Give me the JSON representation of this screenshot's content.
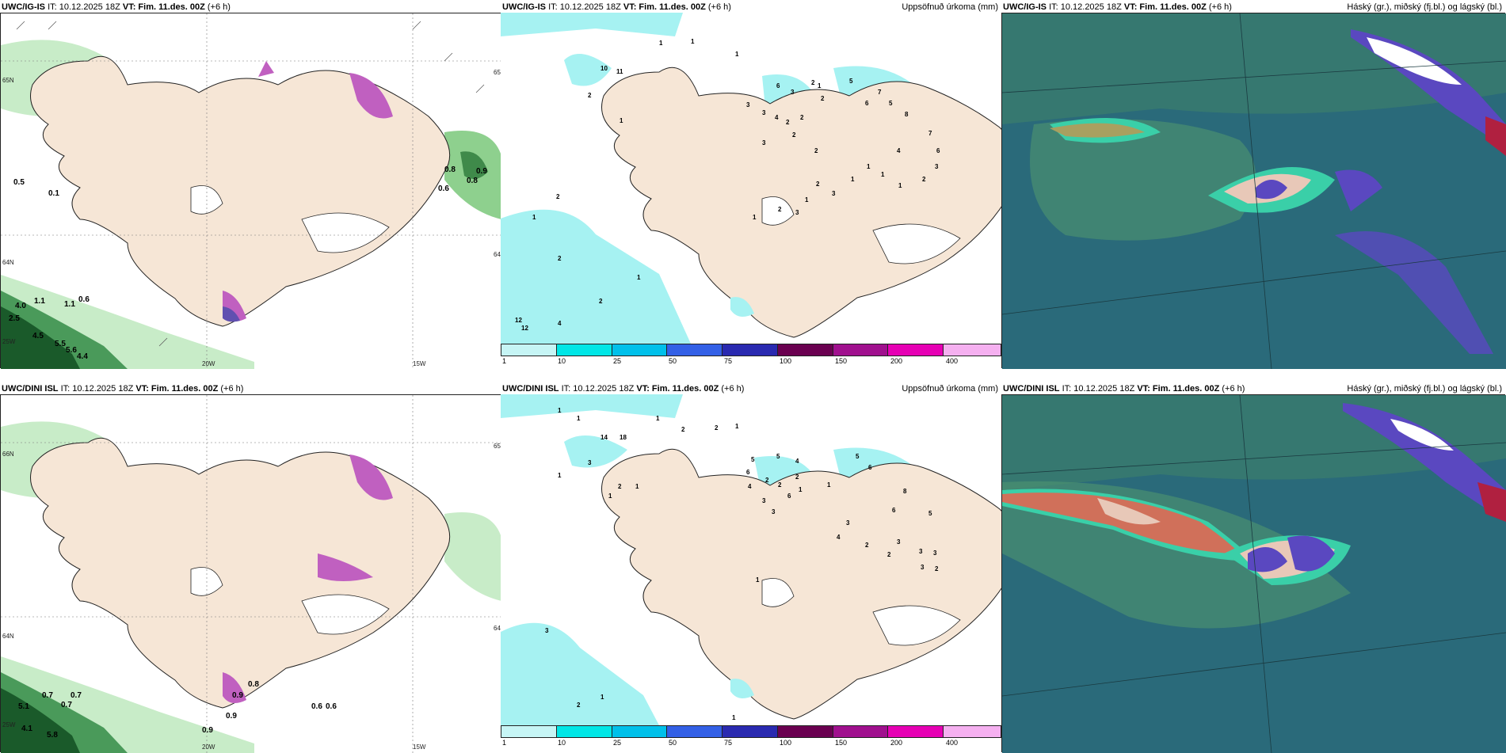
{
  "row1": {
    "p1": {
      "model": "UWC/IG-IS",
      "it": "IT: 10.12.2025 18Z",
      "vt": "VT: Fim. 11.des. 00Z",
      "lead": "(+6 h)",
      "labels": [
        "0.5",
        "0.1",
        "0.8",
        "0.8",
        "0.9",
        "0.6",
        "4.0",
        "1.1",
        "1.1",
        "0.6",
        "2.5",
        "4.5",
        "5.5",
        "5.6",
        "4.4"
      ],
      "axis": [
        "20W",
        "15W",
        "65N",
        "65N",
        "64N",
        "64N",
        "25W"
      ]
    },
    "p2": {
      "model": "UWC/IG-IS",
      "it": "IT: 10.12.2025 18Z",
      "vt": "VT: Fim. 11.des. 00Z",
      "lead": "(+6 h)",
      "title": "Uppsöfnuð úrkoma (mm)",
      "numbers": [
        "1",
        "1",
        "1",
        "10",
        "11",
        "2",
        "1",
        "6",
        "3",
        "2",
        "3",
        "3",
        "4",
        "2",
        "3",
        "2",
        "2",
        "2",
        "2",
        "1",
        "5",
        "6",
        "7",
        "5",
        "8",
        "4",
        "7",
        "6",
        "3",
        "2",
        "1",
        "1",
        "1",
        "1",
        "3",
        "1",
        "3",
        "2",
        "2",
        "1",
        "2",
        "4",
        "2",
        "12",
        "12",
        "1",
        "2",
        "1"
      ]
    },
    "p3": {
      "model": "UWC/IG-IS",
      "it": "IT: 10.12.2025 18Z",
      "vt": "VT: Fim. 11.des. 00Z",
      "lead": "(+6 h)",
      "title": "Háský (gr.), miðský (fj.bl.) og lágský (bl.)"
    }
  },
  "row2": {
    "p1": {
      "model": "UWC/DINI ISL",
      "it": "IT: 10.12.2025 18Z",
      "vt": "VT: Fim. 11.des. 00Z",
      "lead": "(+6 h)",
      "labels": [
        "0.7",
        "0.7",
        "5.1",
        "0.7",
        "4.1",
        "5.8",
        "0.9",
        "0.9",
        "0.6",
        "0.6",
        "0.9",
        "0.8"
      ],
      "axis": [
        "20W",
        "15W",
        "66N",
        "65N",
        "64N",
        "64N",
        "25W"
      ]
    },
    "p2": {
      "model": "UWC/DINI ISL",
      "it": "IT: 10.12.2025 18Z",
      "vt": "VT: Fim. 11.des. 00Z",
      "lead": "(+6 h)",
      "title": "Uppsöfnuð úrkoma (mm)",
      "numbers": [
        "1",
        "1",
        "1",
        "2",
        "2",
        "1",
        "14",
        "18",
        "3",
        "1",
        "2",
        "1",
        "5",
        "4",
        "5",
        "6",
        "2",
        "2",
        "3",
        "4",
        "6",
        "1",
        "2",
        "3",
        "5",
        "6",
        "8",
        "6",
        "5",
        "3",
        "2",
        "4",
        "3",
        "2",
        "3",
        "3",
        "3",
        "2",
        "1",
        "3",
        "1",
        "1",
        "2",
        "1",
        "1"
      ]
    },
    "p3": {
      "model": "UWC/DINI ISL",
      "it": "IT: 10.12.2025 18Z",
      "vt": "VT: Fim. 11.des. 00Z",
      "lead": "(+6 h)",
      "title": "Háský (gr.), miðský (fj.bl.) og lágský (bl.)"
    }
  },
  "legend": {
    "ticks": [
      "1",
      "10",
      "25",
      "50",
      "75",
      "100",
      "150",
      "200",
      "400"
    ],
    "colors": [
      "#c6f5f5",
      "#00e6e6",
      "#00c0ea",
      "#3360e6",
      "#2a2ab0",
      "#6a0050",
      "#a0108e",
      "#e600b4",
      "#f5b0f0"
    ]
  },
  "colors": {
    "land": "#f6e6d6",
    "ocean_light": "#ffffff",
    "precip_light": "#a6f2f2",
    "wind_green": "#a8e0a8",
    "deep_green": "#1a5a2a",
    "purple": "#c060c0",
    "cloud_teal": "#2a6a7a"
  }
}
